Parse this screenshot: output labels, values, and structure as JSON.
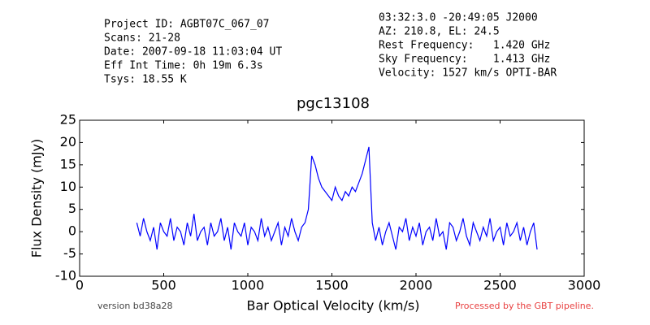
{
  "header": {
    "left": [
      "Project ID: AGBT07C_067_07",
      "Scans: 21-28",
      "Date: 2007-09-18 11:03:04 UT",
      "Eff Int Time: 0h 19m 6.3s",
      "Tsys: 18.55 K"
    ],
    "right": [
      "03:32:3.0 -20:49:05 J2000",
      "AZ: 210.8, EL: 24.5",
      "Rest Frequency:   1.420 GHz",
      "Sky Frequency:    1.413 GHz",
      "Velocity: 1527 km/s OPTI-BAR"
    ]
  },
  "footer": {
    "version": "version bd38a28",
    "pipeline": "Processed by the GBT pipeline."
  },
  "chart_data": {
    "type": "line",
    "title": "pgc13108",
    "x_label": "Bar Optical Velocity (km/s)",
    "y_label": "Flux Density (mJy)",
    "xlim": [
      0,
      3000
    ],
    "ylim": [
      -10,
      25
    ],
    "xticks": [
      0,
      500,
      1000,
      1500,
      2000,
      2500,
      3000
    ],
    "yticks": [
      -10,
      -5,
      0,
      5,
      10,
      15,
      20,
      25
    ],
    "x": [
      340,
      360,
      380,
      400,
      420,
      440,
      460,
      480,
      500,
      520,
      540,
      560,
      580,
      600,
      620,
      640,
      660,
      680,
      700,
      720,
      740,
      760,
      780,
      800,
      820,
      840,
      860,
      880,
      900,
      920,
      940,
      960,
      980,
      1000,
      1020,
      1040,
      1060,
      1080,
      1100,
      1120,
      1140,
      1160,
      1180,
      1200,
      1220,
      1240,
      1260,
      1280,
      1300,
      1320,
      1340,
      1360,
      1380,
      1400,
      1420,
      1440,
      1460,
      1480,
      1500,
      1520,
      1540,
      1560,
      1580,
      1600,
      1620,
      1640,
      1660,
      1680,
      1700,
      1720,
      1740,
      1760,
      1780,
      1800,
      1820,
      1840,
      1860,
      1880,
      1900,
      1920,
      1940,
      1960,
      1980,
      2000,
      2020,
      2040,
      2060,
      2080,
      2100,
      2120,
      2140,
      2160,
      2180,
      2200,
      2220,
      2240,
      2260,
      2280,
      2300,
      2320,
      2340,
      2360,
      2380,
      2400,
      2420,
      2440,
      2460,
      2480,
      2500,
      2520,
      2540,
      2560,
      2580,
      2600,
      2620,
      2640,
      2660,
      2680,
      2700,
      2720
    ],
    "series": [
      {
        "name": "spectrum",
        "color": "#0000ff",
        "values": [
          2,
          -1,
          3,
          0,
          -2,
          1,
          -4,
          2,
          0,
          -1,
          3,
          -2,
          1,
          0,
          -3,
          2,
          -1,
          4,
          -2,
          0,
          1,
          -3,
          2,
          -1,
          0,
          3,
          -2,
          1,
          -4,
          2,
          0,
          -1,
          2,
          -3,
          1,
          0,
          -2,
          3,
          -1,
          1,
          -2,
          0,
          2,
          -3,
          1,
          -1,
          3,
          0,
          -2,
          1,
          2,
          5,
          17,
          15,
          12,
          10,
          9,
          8,
          7,
          10,
          8,
          7,
          9,
          8,
          10,
          9,
          11,
          13,
          16,
          19,
          2,
          -2,
          1,
          -3,
          0,
          2,
          -1,
          -4,
          1,
          0,
          3,
          -2,
          1,
          -1,
          2,
          -3,
          0,
          1,
          -2,
          3,
          -1,
          0,
          -4,
          2,
          1,
          -2,
          0,
          3,
          -1,
          -3,
          2,
          0,
          -2,
          1,
          -1,
          3,
          -2,
          0,
          1,
          -3,
          2,
          -1,
          0,
          2,
          -2,
          1,
          -3,
          0,
          2,
          -4
        ]
      }
    ]
  }
}
